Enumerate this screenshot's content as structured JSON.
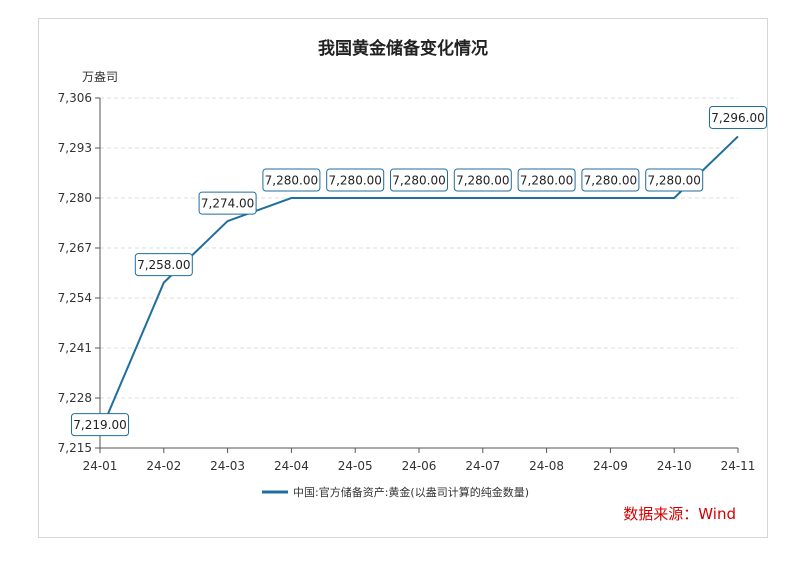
{
  "chart_data": {
    "type": "line",
    "title": "我国黄金储备变化情况",
    "ylabel": "万盎司",
    "xlabel": "",
    "categories": [
      "24-01",
      "24-02",
      "24-03",
      "24-04",
      "24-05",
      "24-06",
      "24-07",
      "24-08",
      "24-09",
      "24-10",
      "24-11"
    ],
    "yticks": [
      7215,
      7228,
      7241,
      7254,
      7267,
      7280,
      7293,
      7306
    ],
    "ylim": [
      7215,
      7306
    ],
    "grid": true,
    "legend_position": "bottom-center",
    "series": [
      {
        "name": "中国:官方储备资产:黄金(以盎司计算的纯金数量)",
        "values": [
          7219,
          7258,
          7274,
          7280,
          7280,
          7280,
          7280,
          7280,
          7280,
          7280,
          7296
        ],
        "labels": [
          "7,219.00",
          "7,258.00",
          "7,274.00",
          "7,280.00",
          "7,280.00",
          "7,280.00",
          "7,280.00",
          "7,280.00",
          "7,280.00",
          "7,280.00",
          "7,296.00"
        ],
        "color": "#1f6e9c"
      }
    ]
  },
  "source_text": "数据来源：Wind"
}
